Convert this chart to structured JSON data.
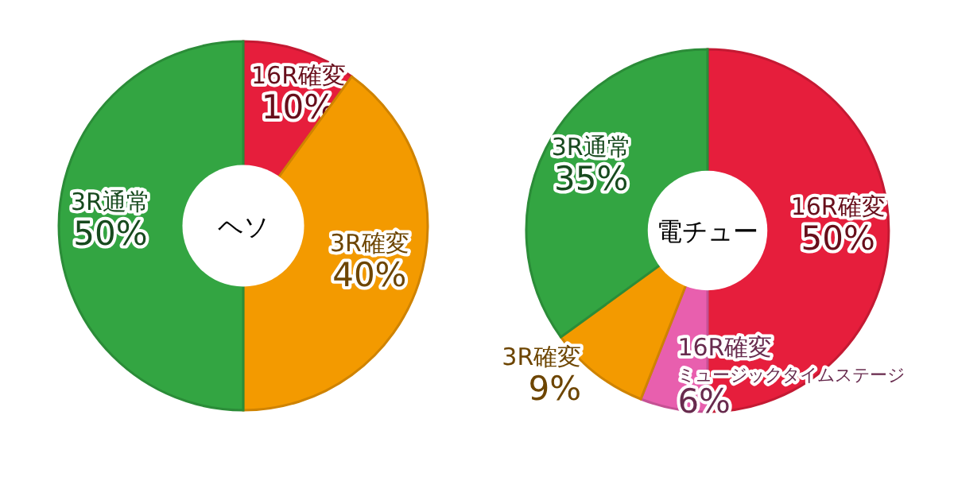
{
  "chart_data": [
    {
      "type": "donut",
      "title": "ヘソ",
      "categories": [
        "16R確変",
        "3R確変",
        "3R通常"
      ],
      "values": [
        10,
        40,
        50
      ],
      "colors": [
        "#e61e3c",
        "#f39a00",
        "#33a542"
      ],
      "value_labels": [
        "10%",
        "40%",
        "50%"
      ]
    },
    {
      "type": "donut",
      "title": "電チュー",
      "categories": [
        "16R確変",
        "16R確変ミュージックタイムステージ",
        "3R確変",
        "3R通常"
      ],
      "values": [
        50,
        6,
        9,
        35
      ],
      "colors": [
        "#e61e3c",
        "#e85fae",
        "#f39a00",
        "#33a542"
      ],
      "value_labels": [
        "50%",
        "6%",
        "9%",
        "35%"
      ]
    }
  ]
}
